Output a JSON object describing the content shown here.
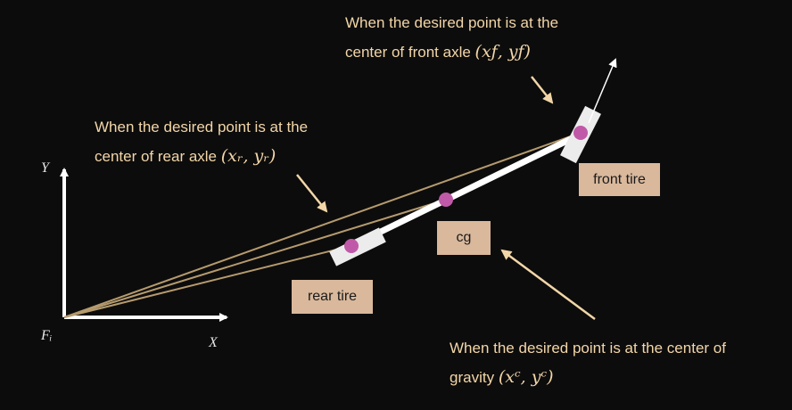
{
  "annotations": {
    "front": {
      "line1": "When the desired point is at the",
      "line2": "center of front axle",
      "math": "(xƒ, yƒ)"
    },
    "rear": {
      "line1": "When the desired point is at the",
      "line2": "center of rear axle",
      "math": "(xᵣ, yᵣ)"
    },
    "cg": {
      "line1": "When the desired point is at the center of",
      "line2": "gravity",
      "math": "(xᶜ, yᶜ)"
    }
  },
  "labels": {
    "front_tire": "front tire",
    "rear_tire": "rear tire",
    "cg": "cg"
  },
  "axes": {
    "x": "X",
    "y": "Y",
    "origin": "Fᵢ"
  },
  "colors": {
    "background": "#0d0c0c",
    "text": "#f2d6a8",
    "label_box": "#d9b89c",
    "point": "#c05aa8",
    "ray": "#b59b6e",
    "body": "#ffffff"
  }
}
